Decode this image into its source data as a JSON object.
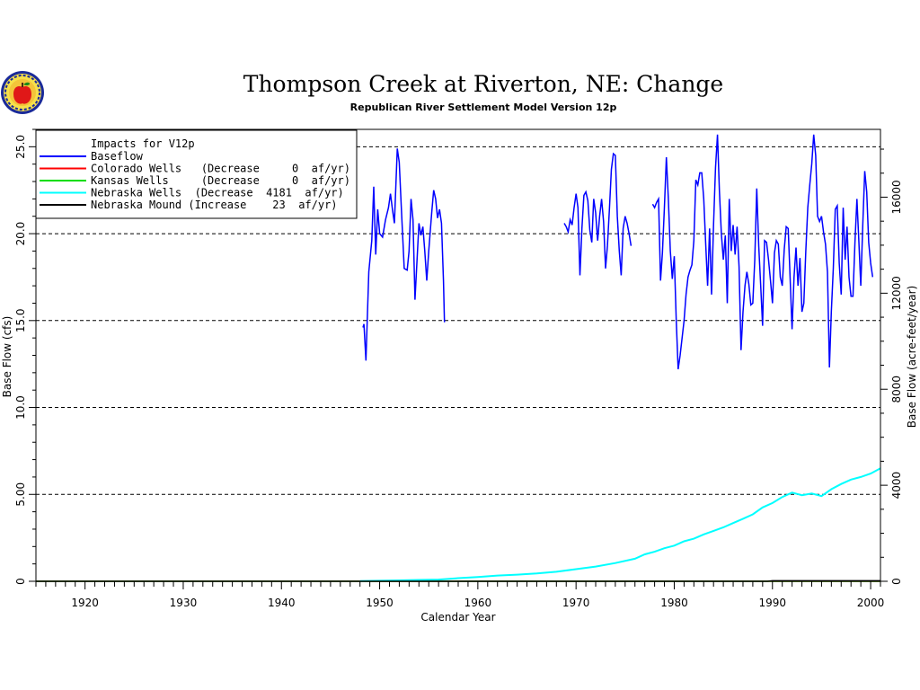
{
  "chart_data": {
    "type": "line",
    "title": "Thompson Creek at Riverton, NE: Change",
    "subtitle": "Republican River Settlement Model Version 12p",
    "xlabel": "Calendar Year",
    "ylabel": "Base Flow (cfs)",
    "y2label": "Base Flow (acre-feet/year)",
    "xlim": [
      1915,
      2001
    ],
    "ylim": [
      0,
      26
    ],
    "y2lim": [
      0,
      18824
    ],
    "x_ticks": [
      1920,
      1930,
      1940,
      1950,
      1960,
      1970,
      1980,
      1990,
      2000
    ],
    "y_ticks": [
      0,
      5,
      10,
      15,
      20,
      25
    ],
    "y_tick_labels": [
      "0",
      "5.00",
      "10.0",
      "15.0",
      "20.0",
      "25.0"
    ],
    "y2_ticks": [
      0,
      4000,
      8000,
      12000,
      16000
    ],
    "y2_tick_labels": [
      "0",
      "4000",
      "8000",
      "12000",
      "16000"
    ],
    "grid": "horizontal-dashed",
    "legend": {
      "placement": "top-left",
      "heading": "Impacts for V12p",
      "entries": [
        {
          "color": "#0000ff",
          "text": "Baseflow"
        },
        {
          "color": "#ff0000",
          "text": "Colorado Wells   (Decrease     0  af/yr)"
        },
        {
          "color": "#00dd00",
          "text": "Kansas Wells     (Decrease     0  af/yr)"
        },
        {
          "color": "#00ffff",
          "text": "Nebraska Wells  (Decrease  4181  af/yr)"
        },
        {
          "color": "#000000",
          "text": "Nebraska Mound (Increase    23  af/yr)"
        }
      ]
    },
    "series": [
      {
        "name": "Baseflow",
        "color": "#0000ff",
        "segments": [
          [
            [
              1948.3,
              14.6
            ],
            [
              1948.4,
              14.8
            ],
            [
              1948.6,
              12.7
            ],
            [
              1948.9,
              17.8
            ],
            [
              1949.2,
              19.6
            ],
            [
              1949.4,
              22.7
            ],
            [
              1949.6,
              18.8
            ],
            [
              1949.8,
              21.4
            ],
            [
              1950.0,
              20.0
            ],
            [
              1950.3,
              19.8
            ],
            [
              1950.6,
              20.8
            ],
            [
              1950.9,
              21.5
            ],
            [
              1951.1,
              22.3
            ],
            [
              1951.3,
              21.4
            ],
            [
              1951.5,
              20.6
            ],
            [
              1951.8,
              24.9
            ],
            [
              1952.0,
              24.1
            ],
            [
              1952.2,
              21.6
            ],
            [
              1952.5,
              18.0
            ],
            [
              1952.8,
              17.9
            ],
            [
              1953.0,
              19.0
            ],
            [
              1953.2,
              22.0
            ],
            [
              1953.4,
              20.8
            ],
            [
              1953.6,
              16.2
            ],
            [
              1953.8,
              18.4
            ],
            [
              1954.0,
              20.6
            ],
            [
              1954.2,
              19.9
            ],
            [
              1954.4,
              20.4
            ],
            [
              1954.6,
              19.0
            ],
            [
              1954.8,
              17.3
            ],
            [
              1955.0,
              19.0
            ],
            [
              1955.3,
              21.2
            ],
            [
              1955.5,
              22.5
            ],
            [
              1955.7,
              22.0
            ],
            [
              1955.9,
              20.9
            ],
            [
              1956.1,
              21.4
            ],
            [
              1956.3,
              20.6
            ],
            [
              1956.5,
              17.3
            ],
            [
              1956.6,
              14.9
            ]
          ],
          [
            [
              1968.8,
              20.6
            ],
            [
              1969.0,
              20.4
            ],
            [
              1969.2,
              20.1
            ],
            [
              1969.4,
              20.8
            ],
            [
              1969.6,
              20.5
            ],
            [
              1969.8,
              21.5
            ],
            [
              1970.0,
              22.3
            ],
            [
              1970.2,
              21.5
            ],
            [
              1970.4,
              17.6
            ],
            [
              1970.6,
              20.3
            ],
            [
              1970.8,
              22.2
            ],
            [
              1971.0,
              22.4
            ],
            [
              1971.2,
              21.9
            ],
            [
              1971.4,
              20.2
            ],
            [
              1971.6,
              19.5
            ],
            [
              1971.8,
              22.0
            ],
            [
              1972.0,
              21.2
            ],
            [
              1972.2,
              19.6
            ],
            [
              1972.4,
              21.0
            ],
            [
              1972.6,
              22.0
            ],
            [
              1972.8,
              20.7
            ],
            [
              1973.0,
              18.0
            ],
            [
              1973.2,
              19.3
            ],
            [
              1973.4,
              21.4
            ],
            [
              1973.6,
              23.7
            ],
            [
              1973.8,
              24.6
            ],
            [
              1974.0,
              24.5
            ],
            [
              1974.2,
              21.0
            ],
            [
              1974.4,
              19.0
            ],
            [
              1974.6,
              17.6
            ],
            [
              1974.8,
              20.3
            ],
            [
              1975.0,
              21.0
            ],
            [
              1975.2,
              20.6
            ],
            [
              1975.4,
              20.0
            ],
            [
              1975.6,
              19.3
            ]
          ],
          [
            [
              1977.8,
              21.7
            ],
            [
              1978.0,
              21.5
            ],
            [
              1978.2,
              21.8
            ],
            [
              1978.4,
              22.0
            ],
            [
              1978.6,
              17.3
            ],
            [
              1978.8,
              18.9
            ],
            [
              1979.0,
              21.5
            ],
            [
              1979.2,
              24.4
            ],
            [
              1979.4,
              22.0
            ],
            [
              1979.6,
              19.0
            ],
            [
              1979.8,
              17.4
            ],
            [
              1980.0,
              18.7
            ],
            [
              1980.2,
              15.0
            ],
            [
              1980.4,
              12.2
            ],
            [
              1980.6,
              13.0
            ],
            [
              1980.8,
              14.0
            ],
            [
              1981.0,
              15.0
            ],
            [
              1981.2,
              16.5
            ],
            [
              1981.4,
              17.5
            ],
            [
              1981.6,
              17.9
            ],
            [
              1981.8,
              18.2
            ],
            [
              1982.0,
              19.6
            ],
            [
              1982.2,
              23.1
            ],
            [
              1982.4,
              22.8
            ],
            [
              1982.6,
              23.5
            ],
            [
              1982.8,
              23.5
            ],
            [
              1983.0,
              22.0
            ],
            [
              1983.2,
              19.5
            ],
            [
              1983.4,
              17.0
            ],
            [
              1983.6,
              20.3
            ],
            [
              1983.8,
              16.5
            ],
            [
              1984.0,
              20.5
            ],
            [
              1984.2,
              23.8
            ],
            [
              1984.4,
              25.7
            ],
            [
              1984.6,
              22.5
            ],
            [
              1984.8,
              20.0
            ],
            [
              1985.0,
              18.5
            ],
            [
              1985.2,
              19.9
            ],
            [
              1985.4,
              16.0
            ],
            [
              1985.6,
              22.0
            ],
            [
              1985.8,
              19.0
            ],
            [
              1986.0,
              20.5
            ],
            [
              1986.2,
              18.8
            ],
            [
              1986.4,
              20.4
            ],
            [
              1986.6,
              18.1
            ],
            [
              1986.8,
              13.3
            ],
            [
              1987.0,
              15.5
            ],
            [
              1987.2,
              17.0
            ],
            [
              1987.4,
              17.8
            ],
            [
              1987.6,
              17.1
            ],
            [
              1987.8,
              15.9
            ],
            [
              1988.0,
              16.0
            ],
            [
              1988.2,
              18.5
            ],
            [
              1988.4,
              22.6
            ],
            [
              1988.6,
              19.3
            ],
            [
              1988.8,
              17.0
            ],
            [
              1989.0,
              14.7
            ],
            [
              1989.2,
              19.6
            ],
            [
              1989.4,
              19.5
            ],
            [
              1989.6,
              18.5
            ],
            [
              1989.8,
              17.3
            ],
            [
              1990.0,
              16.0
            ],
            [
              1990.2,
              18.9
            ],
            [
              1990.4,
              19.6
            ],
            [
              1990.6,
              19.4
            ],
            [
              1990.8,
              17.5
            ],
            [
              1991.0,
              17.0
            ],
            [
              1991.2,
              19.1
            ],
            [
              1991.4,
              20.4
            ],
            [
              1991.6,
              20.3
            ],
            [
              1991.8,
              17.5
            ],
            [
              1992.0,
              14.5
            ],
            [
              1992.2,
              17.5
            ],
            [
              1992.4,
              19.2
            ],
            [
              1992.6,
              17.0
            ],
            [
              1992.8,
              18.6
            ],
            [
              1993.0,
              15.5
            ],
            [
              1993.2,
              16.0
            ],
            [
              1993.4,
              19.0
            ],
            [
              1993.6,
              21.5
            ],
            [
              1993.8,
              22.8
            ],
            [
              1994.0,
              24.0
            ],
            [
              1994.2,
              25.7
            ],
            [
              1994.4,
              24.5
            ],
            [
              1994.6,
              21.0
            ],
            [
              1994.8,
              20.7
            ],
            [
              1995.0,
              21.0
            ],
            [
              1995.2,
              20.1
            ],
            [
              1995.4,
              19.4
            ],
            [
              1995.6,
              17.8
            ],
            [
              1995.8,
              12.3
            ],
            [
              1996.0,
              15.5
            ],
            [
              1996.2,
              18.0
            ],
            [
              1996.4,
              21.4
            ],
            [
              1996.6,
              21.6
            ],
            [
              1996.8,
              18.3
            ],
            [
              1997.0,
              16.5
            ],
            [
              1997.2,
              21.5
            ],
            [
              1997.4,
              18.5
            ],
            [
              1997.6,
              20.4
            ],
            [
              1997.8,
              17.5
            ],
            [
              1998.0,
              16.4
            ],
            [
              1998.2,
              16.4
            ],
            [
              1998.4,
              19.5
            ],
            [
              1998.6,
              22.0
            ],
            [
              1998.8,
              19.5
            ],
            [
              1999.0,
              17.0
            ],
            [
              1999.2,
              20.5
            ],
            [
              1999.4,
              23.6
            ],
            [
              1999.6,
              22.4
            ],
            [
              1999.8,
              19.5
            ],
            [
              2000.0,
              18.3
            ],
            [
              2000.2,
              17.5
            ]
          ]
        ]
      },
      {
        "name": "Colorado Wells",
        "color": "#ff0000",
        "segments": [
          [
            [
              1915,
              0
            ],
            [
              2001,
              0
            ]
          ]
        ]
      },
      {
        "name": "Kansas Wells",
        "color": "#00dd00",
        "segments": [
          [
            [
              1915,
              0
            ],
            [
              2001,
              0
            ]
          ]
        ]
      },
      {
        "name": "Nebraska Wells",
        "color": "#00ffff",
        "segments": [
          [
            [
              1948,
              0.01
            ],
            [
              1950,
              0.03
            ],
            [
              1952,
              0.05
            ],
            [
              1954,
              0.08
            ],
            [
              1956,
              0.1
            ],
            [
              1958,
              0.18
            ],
            [
              1960,
              0.25
            ],
            [
              1962,
              0.33
            ],
            [
              1964,
              0.38
            ],
            [
              1966,
              0.45
            ],
            [
              1968,
              0.55
            ],
            [
              1970,
              0.7
            ],
            [
              1972,
              0.85
            ],
            [
              1974,
              1.05
            ],
            [
              1976,
              1.3
            ],
            [
              1977,
              1.55
            ],
            [
              1978,
              1.7
            ],
            [
              1979,
              1.9
            ],
            [
              1980,
              2.05
            ],
            [
              1981,
              2.3
            ],
            [
              1982,
              2.45
            ],
            [
              1983,
              2.7
            ],
            [
              1984,
              2.9
            ],
            [
              1985,
              3.1
            ],
            [
              1986,
              3.35
            ],
            [
              1987,
              3.6
            ],
            [
              1988,
              3.85
            ],
            [
              1989,
              4.25
            ],
            [
              1990,
              4.5
            ],
            [
              1991,
              4.85
            ],
            [
              1992,
              5.1
            ],
            [
              1993,
              4.95
            ],
            [
              1994,
              5.05
            ],
            [
              1995,
              4.9
            ],
            [
              1996,
              5.3
            ],
            [
              1997,
              5.6
            ],
            [
              1998,
              5.85
            ],
            [
              1999,
              6.0
            ],
            [
              2000,
              6.2
            ],
            [
              2001,
              6.5
            ]
          ]
        ]
      },
      {
        "name": "Nebraska Mound",
        "color": "#000000",
        "segments": [
          [
            [
              1915,
              0
            ],
            [
              1989.5,
              0
            ],
            [
              1990,
              0.03
            ],
            [
              2001,
              0.03
            ]
          ]
        ]
      }
    ]
  },
  "logo": {
    "name": "agency-seal"
  }
}
